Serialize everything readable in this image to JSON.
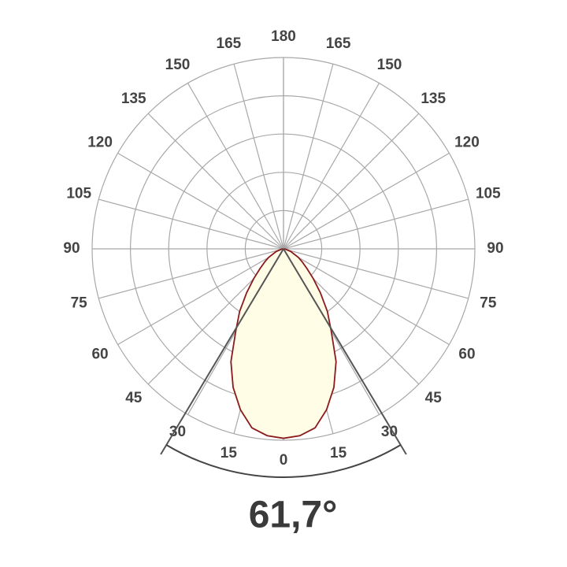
{
  "chart_data": {
    "type": "polar",
    "angles": [
      0,
      15,
      30,
      45,
      60,
      75,
      90,
      105,
      120,
      135,
      150,
      165,
      180
    ],
    "series": [
      {
        "color": "#8b1a1a",
        "fill": "#fffde6",
        "x": [
          0,
          5,
          10,
          15,
          20,
          25,
          30,
          35,
          40,
          45,
          50,
          55,
          60,
          70,
          80,
          90
        ],
        "values": [
          99,
          98,
          95,
          87,
          77,
          65,
          50,
          40,
          30,
          22,
          16,
          12,
          9,
          4,
          1,
          0
        ]
      }
    ],
    "rlim": [
      0,
      100
    ],
    "rticks": [
      20,
      40,
      60,
      80,
      100
    ],
    "grid": true,
    "beam_angle": {
      "value": 61.7,
      "label": "61,7°"
    }
  }
}
